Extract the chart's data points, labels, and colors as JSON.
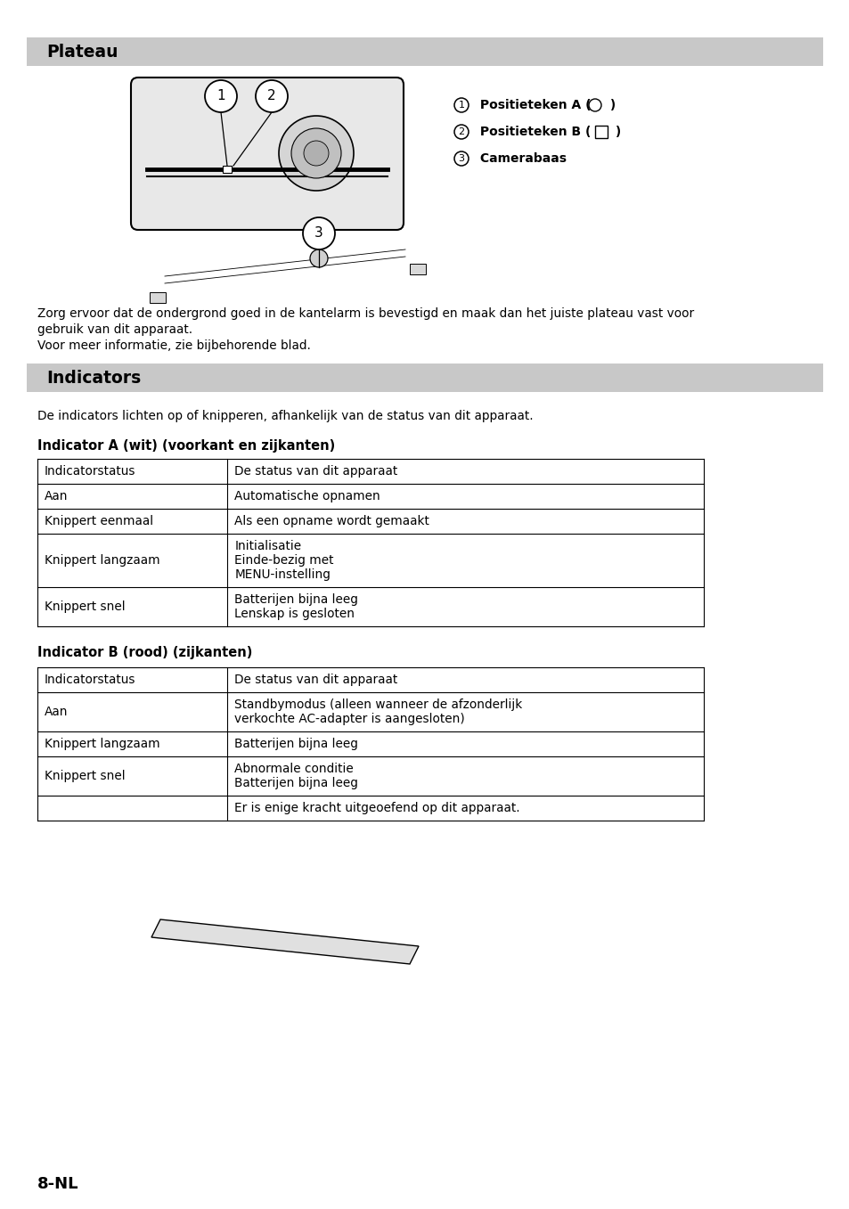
{
  "bg_color": "#ffffff",
  "section1_title": "Plateau",
  "section2_title": "Indicators",
  "header_bg": "#c8c8c8",
  "plateau_text1": "Zorg ervoor dat de ondergrond goed in de kantelarm is bevestigd en maak dan het juiste plateau vast voor",
  "plateau_text2": "gebruik van dit apparaat.",
  "plateau_text3": "Voor meer informatie, zie bijbehorende blad.",
  "indicators_intro": "De indicators lichten op of knipperen, afhankelijk van de status van dit apparaat.",
  "table_a_title": "Indicator A (wit) (voorkant en zijkanten)",
  "table_a_rows": [
    [
      "Indicatorstatus",
      "De status van dit apparaat"
    ],
    [
      "Aan",
      "Automatische opnamen"
    ],
    [
      "Knippert eenmaal",
      "Als een opname wordt gemaakt"
    ],
    [
      "Knippert langzaam",
      "Initialisatie\nEinde-bezig met\nMENU-instelling"
    ],
    [
      "Knippert snel",
      "Batterijen bijna leeg\nLenskap is gesloten"
    ]
  ],
  "table_b_title": "Indicator B (rood) (zijkanten)",
  "table_b_rows": [
    [
      "Indicatorstatus",
      "De status van dit apparaat"
    ],
    [
      "Aan",
      "Standbymodus (alleen wanneer de afzonderlijk\nverkochte AC-adapter is aangesloten)"
    ],
    [
      "Knippert langzaam",
      "Batterijen bijna leeg"
    ],
    [
      "Knippert snel",
      "Abnormale conditie\nBatterijen bijna leeg"
    ],
    [
      "",
      "Er is enige kracht uitgeoefend op dit apparaat."
    ]
  ],
  "footer": "8-NL"
}
